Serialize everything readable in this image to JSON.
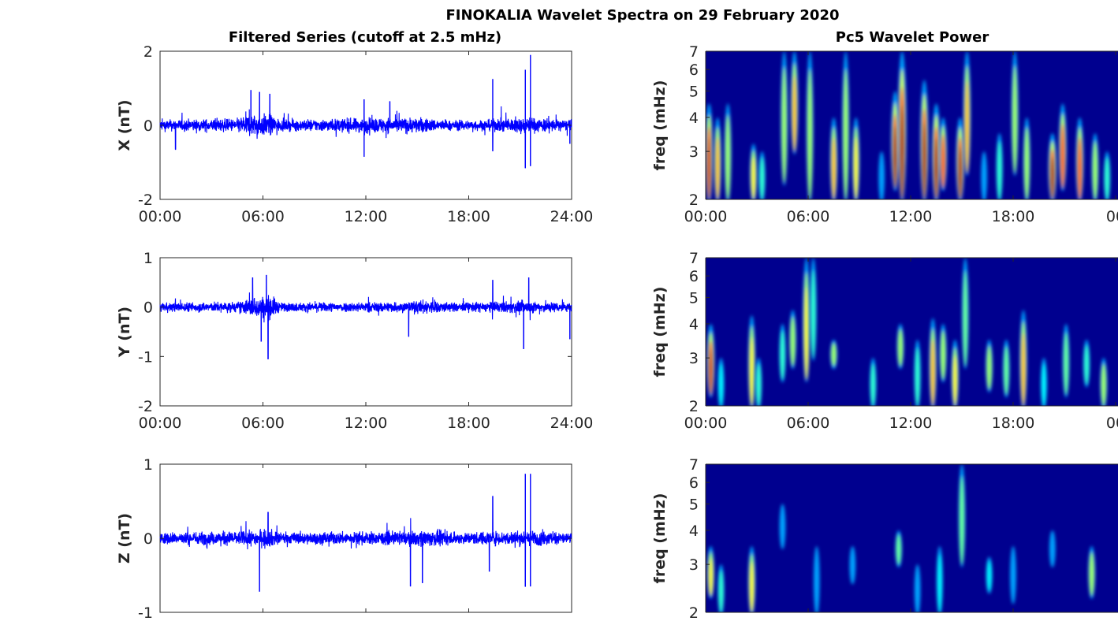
{
  "title": "FINOKALIA Wavelet Spectra on 29 February 2020",
  "left_title": "Filtered Series (cutoff at 2.5 mHz)",
  "right_title": "Pc5 Wavelet Power",
  "colors": {
    "line": "#0000ff",
    "background": "#00008f",
    "axis": "#262626"
  },
  "chart_data": [
    {
      "type": "line",
      "name": "X",
      "ylabel": "X (nT)",
      "ylim": [
        -2,
        2
      ],
      "yticks": [
        "-2",
        "0",
        "2"
      ],
      "yvals": [
        -2,
        0,
        2
      ],
      "xlim": [
        0,
        24
      ],
      "xticks": [
        "00:00",
        "06:00",
        "12:00",
        "18:00",
        "24:00"
      ],
      "noise_envelope": [
        [
          0,
          0.25
        ],
        [
          4.5,
          0.3
        ],
        [
          5,
          0.5
        ],
        [
          6.5,
          0.5
        ],
        [
          7,
          0.25
        ],
        [
          11,
          0.3
        ],
        [
          12,
          0.35
        ],
        [
          15,
          0.35
        ],
        [
          17,
          0.22
        ],
        [
          19,
          0.25
        ],
        [
          21,
          0.35
        ],
        [
          22,
          0.35
        ],
        [
          24,
          0.22
        ]
      ],
      "spikes": [
        [
          5.3,
          0.95
        ],
        [
          5.8,
          0.9
        ],
        [
          6.4,
          0.85
        ],
        [
          11.9,
          -0.85
        ],
        [
          11.9,
          0.7
        ],
        [
          13.4,
          0.65
        ],
        [
          19.4,
          1.25
        ],
        [
          19.4,
          -0.7
        ],
        [
          21.3,
          1.5
        ],
        [
          21.6,
          1.9
        ],
        [
          21.3,
          -1.15
        ],
        [
          21.6,
          -1.1
        ],
        [
          0.9,
          -0.65
        ],
        [
          23.9,
          -0.5
        ]
      ]
    },
    {
      "type": "line",
      "name": "Y",
      "ylabel": "Y (nT)",
      "ylim": [
        -2,
        1
      ],
      "yticks": [
        "-2",
        "-1",
        "0",
        "1"
      ],
      "yvals": [
        -2,
        -1,
        0,
        1
      ],
      "xlim": [
        0,
        24
      ],
      "xticks": [
        "00:00",
        "06:00",
        "12:00",
        "18:00",
        "24:00"
      ],
      "noise_envelope": [
        [
          0,
          0.15
        ],
        [
          4.5,
          0.18
        ],
        [
          5.5,
          0.35
        ],
        [
          6.5,
          0.4
        ],
        [
          7,
          0.15
        ],
        [
          14.5,
          0.18
        ],
        [
          15.5,
          0.25
        ],
        [
          17,
          0.15
        ],
        [
          21,
          0.2
        ],
        [
          22,
          0.2
        ],
        [
          24,
          0.15
        ]
      ],
      "spikes": [
        [
          5.4,
          0.6
        ],
        [
          6.2,
          0.65
        ],
        [
          6.3,
          -1.05
        ],
        [
          5.9,
          -0.7
        ],
        [
          14.5,
          -0.6
        ],
        [
          19.4,
          0.55
        ],
        [
          21.2,
          -0.85
        ],
        [
          21.5,
          0.6
        ],
        [
          23.9,
          -0.65
        ]
      ]
    },
    {
      "type": "line",
      "name": "Z",
      "ylabel": "Z (nT)",
      "ylim": [
        -1,
        1
      ],
      "yticks": [
        "-1",
        "0",
        "1"
      ],
      "yvals": [
        -1,
        0,
        1
      ],
      "xlim": [
        0,
        24
      ],
      "xticks": [
        "00:00",
        "06:00",
        "12:00",
        "18:00",
        "24:00"
      ],
      "noise_envelope": [
        [
          0,
          0.13
        ],
        [
          5.5,
          0.17
        ],
        [
          6.5,
          0.2
        ],
        [
          7,
          0.13
        ],
        [
          14.5,
          0.15
        ],
        [
          15.5,
          0.2
        ],
        [
          17,
          0.13
        ],
        [
          21,
          0.17
        ],
        [
          22,
          0.17
        ],
        [
          24,
          0.13
        ]
      ],
      "spikes": [
        [
          5.8,
          -0.72
        ],
        [
          6.3,
          0.35
        ],
        [
          14.6,
          -0.65
        ],
        [
          15.3,
          -0.6
        ],
        [
          19.4,
          0.57
        ],
        [
          19.2,
          -0.45
        ],
        [
          21.3,
          0.87
        ],
        [
          21.6,
          0.87
        ],
        [
          21.3,
          -0.65
        ],
        [
          21.6,
          -0.65
        ]
      ]
    },
    {
      "type": "heatmap",
      "name": "X power",
      "ylabel": "freq (mHz)",
      "yscale": "log",
      "ylim": [
        2,
        7
      ],
      "yticks": [
        "2",
        "3",
        "4",
        "5",
        "6",
        "7"
      ],
      "yvals": [
        2,
        3,
        4,
        5,
        6,
        7
      ],
      "xlim": [
        0,
        24
      ],
      "xticks": [
        "00:00",
        "06:00",
        "12:00",
        "18:00",
        "00"
      ],
      "streaks_hour_flow_fhigh_power": [
        [
          0.2,
          2,
          4.5,
          0.75
        ],
        [
          0.7,
          2,
          4,
          0.6
        ],
        [
          1.3,
          2,
          4.5,
          0.5
        ],
        [
          2.8,
          2,
          3.2,
          0.55
        ],
        [
          3.3,
          2,
          3,
          0.4
        ],
        [
          4.6,
          2.3,
          7,
          0.5
        ],
        [
          5.2,
          3,
          7,
          0.6
        ],
        [
          6.1,
          2,
          7,
          0.5
        ],
        [
          7.5,
          2,
          4,
          0.6
        ],
        [
          8.2,
          2,
          7,
          0.5
        ],
        [
          8.8,
          2,
          4,
          0.55
        ],
        [
          10.3,
          2,
          3,
          0.3
        ],
        [
          11.1,
          2.2,
          5,
          0.9
        ],
        [
          11.5,
          2,
          7,
          0.95
        ],
        [
          12.8,
          2,
          5.5,
          0.85
        ],
        [
          13.5,
          2,
          4.5,
          0.9
        ],
        [
          13.9,
          2.2,
          4,
          0.7
        ],
        [
          14.9,
          2,
          4,
          0.85
        ],
        [
          15.3,
          2.5,
          7,
          0.6
        ],
        [
          16.3,
          2,
          3,
          0.3
        ],
        [
          17.2,
          2,
          3.5,
          0.4
        ],
        [
          18.1,
          2.5,
          7,
          0.5
        ],
        [
          18.8,
          2,
          4,
          0.5
        ],
        [
          20.3,
          2,
          3.5,
          0.85
        ],
        [
          20.9,
          2.2,
          4.5,
          0.7
        ],
        [
          21.9,
          2,
          4,
          0.7
        ],
        [
          22.8,
          2,
          3.5,
          0.5
        ],
        [
          23.5,
          2,
          3,
          0.4
        ]
      ]
    },
    {
      "type": "heatmap",
      "name": "Y power",
      "ylabel": "freq (mHz)",
      "yscale": "log",
      "ylim": [
        2,
        7
      ],
      "yticks": [
        "2",
        "3",
        "4",
        "5",
        "6",
        "7"
      ],
      "yvals": [
        2,
        3,
        4,
        5,
        6,
        7
      ],
      "xlim": [
        0,
        24
      ],
      "xticks": [
        "00:00",
        "06:00",
        "12:00",
        "18:00",
        "00"
      ],
      "streaks_hour_flow_fhigh_power": [
        [
          0.3,
          2.2,
          4,
          0.75
        ],
        [
          0.9,
          2,
          3,
          0.35
        ],
        [
          2.7,
          2,
          4.3,
          0.55
        ],
        [
          3.1,
          2,
          3,
          0.4
        ],
        [
          4.5,
          2.5,
          4,
          0.4
        ],
        [
          5.1,
          2.8,
          4.5,
          0.5
        ],
        [
          5.9,
          2.5,
          7,
          0.55
        ],
        [
          6.3,
          3,
          7,
          0.4
        ],
        [
          7.5,
          2.8,
          3.5,
          0.5
        ],
        [
          9.8,
          2,
          3,
          0.4
        ],
        [
          11.4,
          2.8,
          4,
          0.5
        ],
        [
          12.4,
          2,
          3.5,
          0.4
        ],
        [
          13.3,
          2,
          4.2,
          0.6
        ],
        [
          13.9,
          2.5,
          4,
          0.5
        ],
        [
          14.6,
          2,
          3.5,
          0.55
        ],
        [
          15.2,
          2.8,
          7,
          0.45
        ],
        [
          16.6,
          2.3,
          3.5,
          0.5
        ],
        [
          17.6,
          2.2,
          3.5,
          0.45
        ],
        [
          18.6,
          2,
          4.5,
          0.6
        ],
        [
          19.8,
          2,
          3,
          0.35
        ],
        [
          21.1,
          2.2,
          4,
          0.45
        ],
        [
          22.3,
          2.4,
          3.5,
          0.4
        ],
        [
          23.3,
          2,
          3,
          0.5
        ]
      ]
    },
    {
      "type": "heatmap",
      "name": "Z power",
      "ylabel": "freq (mHz)",
      "yscale": "log",
      "ylim": [
        2,
        7
      ],
      "yticks": [
        "2",
        "3",
        "4",
        "5",
        "6",
        "7"
      ],
      "yvals": [
        2,
        3,
        4,
        5,
        6,
        7
      ],
      "xlim": [
        0,
        24
      ],
      "xticks": [],
      "streaks_hour_flow_fhigh_power": [
        [
          0.3,
          2.3,
          3.5,
          0.55
        ],
        [
          0.9,
          2,
          3,
          0.4
        ],
        [
          2.7,
          2,
          3.5,
          0.55
        ],
        [
          4.5,
          3.5,
          5,
          0.3
        ],
        [
          6.5,
          2,
          3.5,
          0.3
        ],
        [
          8.6,
          2.6,
          3.5,
          0.3
        ],
        [
          11.3,
          3,
          4,
          0.45
        ],
        [
          12.4,
          2,
          3,
          0.3
        ],
        [
          13.7,
          2,
          3.5,
          0.35
        ],
        [
          15.0,
          3,
          7,
          0.45
        ],
        [
          16.6,
          2.4,
          3.2,
          0.35
        ],
        [
          18.0,
          2.2,
          3.5,
          0.3
        ],
        [
          20.3,
          3,
          4,
          0.3
        ],
        [
          22.6,
          2.3,
          3.5,
          0.5
        ]
      ]
    }
  ]
}
